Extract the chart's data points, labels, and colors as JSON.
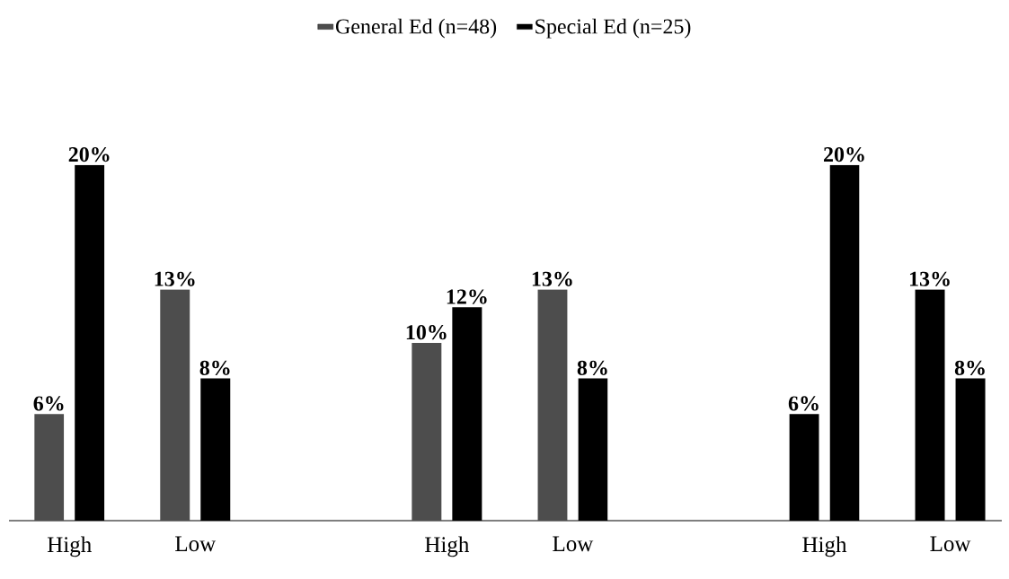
{
  "chart_data": {
    "type": "bar",
    "categories": [
      "High",
      "Low",
      null,
      "High",
      "Low",
      null,
      "High",
      "Low"
    ],
    "series": [
      {
        "name": "General Ed (n=48)",
        "color": "#4d4d4d",
        "colors": [
          "#4d4d4d",
          "#4d4d4d",
          null,
          "#4d4d4d",
          "#4d4d4d",
          null,
          "#000000",
          "#000000"
        ],
        "values": [
          6,
          13,
          null,
          10,
          13,
          null,
          6,
          13
        ],
        "value_labels": [
          "6%",
          "13%",
          null,
          "10%",
          "13%",
          null,
          "6%",
          "13%"
        ]
      },
      {
        "name": "Special Ed (n=25)",
        "color": "#000000",
        "values": [
          20,
          8,
          null,
          12,
          8,
          null,
          20,
          8
        ],
        "value_labels": [
          "20%",
          "8%",
          null,
          "12%",
          "8%",
          null,
          "20%",
          "8%"
        ]
      }
    ],
    "legend": "top"
  }
}
